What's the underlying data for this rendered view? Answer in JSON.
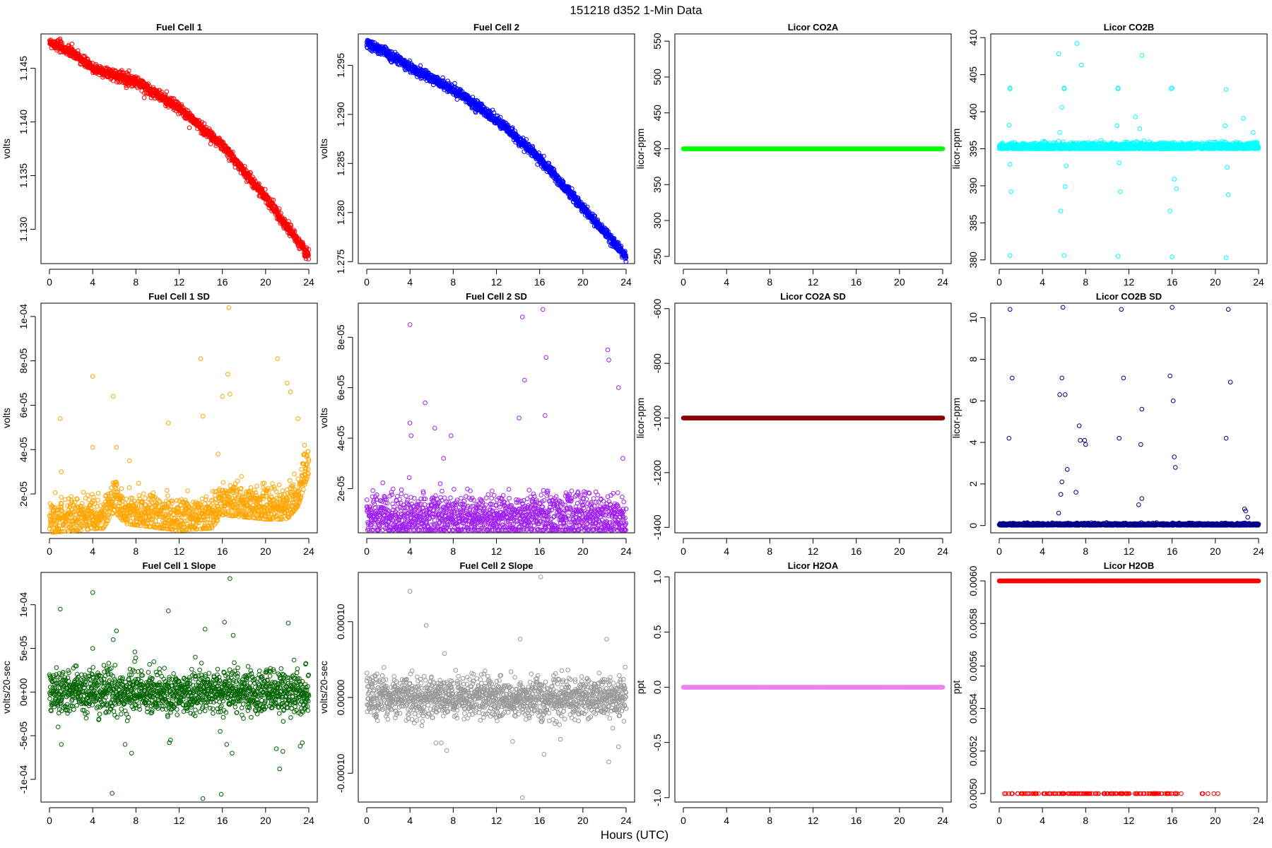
{
  "figure": {
    "title": "151218   d352   1-Min Data",
    "xlabel": "Hours (UTC)"
  },
  "chart_data": [
    {
      "type": "scatter",
      "title": "Fuel Cell 1",
      "ylabel": "volts",
      "color": "#ff0000",
      "xlim": [
        0,
        24
      ],
      "ylim": [
        1.1268,
        1.1482
      ],
      "xticks": [
        "0",
        "4",
        "8",
        "12",
        "16",
        "20",
        "24"
      ],
      "yticks": [
        {
          "v": 1.13,
          "label": "1.130"
        },
        {
          "v": 1.135,
          "label": "1.135"
        },
        {
          "v": 1.14,
          "label": "1.140"
        },
        {
          "v": 1.145,
          "label": "1.145"
        }
      ],
      "series_kind": "curve",
      "curve": [
        [
          0,
          1.1475
        ],
        [
          2,
          1.1465
        ],
        [
          4,
          1.145
        ],
        [
          8,
          1.1438
        ],
        [
          12,
          1.1413
        ],
        [
          16,
          1.1378
        ],
        [
          20,
          1.133
        ],
        [
          24,
          1.1275
        ]
      ],
      "noise": 0.0005,
      "outliers": []
    },
    {
      "type": "scatter",
      "title": "Fuel Cell 2",
      "ylabel": "volts",
      "color": "#0000ff",
      "xlim": [
        0,
        24
      ],
      "ylim": [
        1.2748,
        1.2982
      ],
      "xticks": [
        "0",
        "4",
        "8",
        "12",
        "16",
        "20",
        "24"
      ],
      "yticks": [
        {
          "v": 1.275,
          "label": "1.275"
        },
        {
          "v": 1.28,
          "label": "1.280"
        },
        {
          "v": 1.285,
          "label": "1.285"
        },
        {
          "v": 1.29,
          "label": "1.290"
        },
        {
          "v": 1.295,
          "label": "1.295"
        }
      ],
      "series_kind": "curve",
      "curve": [
        [
          0,
          1.2972
        ],
        [
          2,
          1.2962
        ],
        [
          4,
          1.2948
        ],
        [
          8,
          1.2925
        ],
        [
          12,
          1.2895
        ],
        [
          16,
          1.2855
        ],
        [
          20,
          1.2805
        ],
        [
          24,
          1.2755
        ]
      ],
      "noise": 0.0005,
      "outliers": []
    },
    {
      "type": "scatter",
      "title": "Licor CO2A",
      "ylabel": "licor-ppm",
      "color": "#00ff00",
      "xlim": [
        0,
        24
      ],
      "ylim": [
        240,
        560
      ],
      "xticks": [
        "0",
        "4",
        "8",
        "12",
        "16",
        "20",
        "24"
      ],
      "yticks": [
        {
          "v": 250,
          "label": "250"
        },
        {
          "v": 300,
          "label": "300"
        },
        {
          "v": 350,
          "label": "350"
        },
        {
          "v": 400,
          "label": "400"
        },
        {
          "v": 450,
          "label": "450"
        },
        {
          "v": 500,
          "label": "500"
        },
        {
          "v": 550,
          "label": "550"
        }
      ],
      "series_kind": "constant",
      "constant": 400,
      "noise": 0,
      "outliers": []
    },
    {
      "type": "scatter",
      "title": "Licor CO2B",
      "ylabel": "licor-ppm",
      "color": "#00ffff",
      "xlim": [
        0,
        24
      ],
      "ylim": [
        379.5,
        410.5
      ],
      "xticks": [
        "0",
        "4",
        "8",
        "12",
        "16",
        "20",
        "24"
      ],
      "yticks": [
        {
          "v": 380,
          "label": "380"
        },
        {
          "v": 385,
          "label": "385"
        },
        {
          "v": 390,
          "label": "390"
        },
        {
          "v": 395,
          "label": "395"
        },
        {
          "v": 400,
          "label": "400"
        },
        {
          "v": 405,
          "label": "405"
        },
        {
          "v": 410,
          "label": "410"
        }
      ],
      "series_kind": "noise",
      "base": 395.3,
      "noise": 0.25,
      "outliers": [
        [
          1,
          403.2
        ],
        [
          1,
          403.1
        ],
        [
          1,
          380.6
        ],
        [
          0.9,
          398.2
        ],
        [
          1.1,
          389.2
        ],
        [
          1.0,
          392.9
        ],
        [
          5.5,
          407.8
        ],
        [
          6,
          403.2
        ],
        [
          6,
          403.1
        ],
        [
          5.8,
          400.6
        ],
        [
          5.6,
          397.2
        ],
        [
          5.7,
          386.6
        ],
        [
          6.1,
          389.9
        ],
        [
          6.0,
          380.6
        ],
        [
          6.2,
          392.7
        ],
        [
          7.2,
          409.2
        ],
        [
          7.6,
          406.3
        ],
        [
          8.0,
          395.7
        ],
        [
          11,
          403.1
        ],
        [
          11,
          403.2
        ],
        [
          11,
          380.5
        ],
        [
          10.9,
          398.1
        ],
        [
          11.1,
          393.1
        ],
        [
          11.2,
          389.2
        ],
        [
          12.6,
          399.3
        ],
        [
          13,
          397.7
        ],
        [
          13.2,
          407.6
        ],
        [
          13.4,
          396.1
        ],
        [
          15.9,
          403.1
        ],
        [
          16,
          403.2
        ],
        [
          16,
          380.4
        ],
        [
          15.8,
          386.6
        ],
        [
          16.2,
          390.9
        ],
        [
          16.4,
          389.6
        ],
        [
          21,
          403.0
        ],
        [
          21,
          380.3
        ],
        [
          20.9,
          398.1
        ],
        [
          21.1,
          392.5
        ],
        [
          21.2,
          388.8
        ],
        [
          22.6,
          399.1
        ],
        [
          23.5,
          397.2
        ]
      ]
    },
    {
      "type": "scatter",
      "title": "Fuel Cell 1 SD",
      "ylabel": "volts",
      "color": "#ffa500",
      "xlim": [
        0,
        24
      ],
      "ylim": [
        2.5e-06,
        0.000106
      ],
      "xticks": [
        "0",
        "4",
        "8",
        "12",
        "16",
        "20",
        "24"
      ],
      "yticks": [
        {
          "v": 2e-05,
          "label": "2e-05"
        },
        {
          "v": 4e-05,
          "label": "4e-05"
        },
        {
          "v": 6e-05,
          "label": "6e-05"
        },
        {
          "v": 8e-05,
          "label": "8e-05"
        },
        {
          "v": 0.0001,
          "label": "1e-04"
        }
      ],
      "series_kind": "noise",
      "curve": [
        [
          0,
          8e-06
        ],
        [
          5,
          1e-05
        ],
        [
          6,
          1.8e-05
        ],
        [
          7,
          1.2e-05
        ],
        [
          12,
          9e-06
        ],
        [
          15,
          1e-05
        ],
        [
          16,
          1.6e-05
        ],
        [
          20,
          1.4e-05
        ],
        [
          22,
          1.4e-05
        ],
        [
          23,
          2e-05
        ],
        [
          24,
          3.5e-05
        ]
      ],
      "noise": 4.5e-06,
      "outliers": [
        [
          1,
          5.4e-05
        ],
        [
          1.1,
          3e-05
        ],
        [
          4,
          7.3e-05
        ],
        [
          4,
          4.1e-05
        ],
        [
          5.9,
          6.4e-05
        ],
        [
          6.2,
          4.1e-05
        ],
        [
          7.4,
          3.5e-05
        ],
        [
          11,
          5.2e-05
        ],
        [
          14,
          8.1e-05
        ],
        [
          14.2,
          5.5e-05
        ],
        [
          15.6,
          3.8e-05
        ],
        [
          16,
          6.4e-05
        ],
        [
          16.5,
          7.4e-05
        ],
        [
          16.7,
          6.5e-05
        ],
        [
          16.6,
          0.000104
        ],
        [
          21.1,
          8.1e-05
        ],
        [
          22.0,
          7e-05
        ],
        [
          22.3,
          6.6e-05
        ],
        [
          23.0,
          5.4e-05
        ],
        [
          23.6,
          4.2e-05
        ]
      ]
    },
    {
      "type": "scatter",
      "title": "Fuel Cell 2 SD",
      "ylabel": "volts",
      "color": "#a020f0",
      "xlim": [
        0,
        24
      ],
      "ylim": [
        2.5e-06,
        9.35e-05
      ],
      "xticks": [
        "0",
        "4",
        "8",
        "12",
        "16",
        "20",
        "24"
      ],
      "yticks": [
        {
          "v": 2e-05,
          "label": "2e-05"
        },
        {
          "v": 4e-05,
          "label": "4e-05"
        },
        {
          "v": 6e-05,
          "label": "6e-05"
        },
        {
          "v": 8e-05,
          "label": "8e-05"
        }
      ],
      "series_kind": "noise",
      "base": 9e-06,
      "noise": 4.5e-06,
      "outliers": [
        [
          4,
          8.5e-05
        ],
        [
          4,
          4.6e-05
        ],
        [
          4.1,
          4.1e-05
        ],
        [
          5.4,
          5.4e-05
        ],
        [
          6.3,
          4.4e-05
        ],
        [
          7.1,
          3.2e-05
        ],
        [
          7.8,
          4.1e-05
        ],
        [
          14.1,
          4.8e-05
        ],
        [
          14.4,
          8.8e-05
        ],
        [
          14.6,
          6.3e-05
        ],
        [
          16.3,
          9.1e-05
        ],
        [
          16.6,
          7.2e-05
        ],
        [
          16.5,
          4.9e-05
        ],
        [
          22.3,
          7.5e-05
        ],
        [
          22.4,
          7.1e-05
        ],
        [
          23.3,
          6e-05
        ],
        [
          23.7,
          3.2e-05
        ]
      ]
    },
    {
      "type": "scatter",
      "title": "Licor CO2A SD",
      "ylabel": "licor-ppm",
      "color": "#8b0000",
      "xlim": [
        0,
        24
      ],
      "ylim": [
        -1420,
        -580
      ],
      "xticks": [
        "0",
        "4",
        "8",
        "12",
        "16",
        "20",
        "24"
      ],
      "yticks": [
        {
          "v": -1400,
          "label": "-1400"
        },
        {
          "v": -1200,
          "label": "-1200"
        },
        {
          "v": -1000,
          "label": "-1000"
        },
        {
          "v": -800,
          "label": "-800"
        },
        {
          "v": -600,
          "label": "-600"
        }
      ],
      "series_kind": "constant",
      "constant": -1000,
      "noise": 0,
      "outliers": []
    },
    {
      "type": "scatter",
      "title": "Licor CO2B SD",
      "ylabel": "licor-ppm",
      "color": "#00008b",
      "xlim": [
        0,
        24
      ],
      "ylim": [
        -0.35,
        10.7
      ],
      "xticks": [
        "0",
        "4",
        "8",
        "12",
        "16",
        "20",
        "24"
      ],
      "yticks": [
        {
          "v": 0,
          "label": "0"
        },
        {
          "v": 2,
          "label": "2"
        },
        {
          "v": 4,
          "label": "4"
        },
        {
          "v": 6,
          "label": "6"
        },
        {
          "v": 8,
          "label": "8"
        },
        {
          "v": 10,
          "label": "10"
        }
      ],
      "series_kind": "noise",
      "base": 0.05,
      "noise": 0.03,
      "outliers": [
        [
          0.9,
          4.2
        ],
        [
          1,
          10.4
        ],
        [
          1.2,
          7.1
        ],
        [
          5.5,
          0.6
        ],
        [
          5.6,
          6.3
        ],
        [
          5.9,
          10.5
        ],
        [
          5.8,
          7.1
        ],
        [
          6.1,
          6.3
        ],
        [
          5.8,
          2.1
        ],
        [
          5.7,
          1.5
        ],
        [
          6.3,
          2.7
        ],
        [
          7.1,
          1.6
        ],
        [
          7.4,
          4.8
        ],
        [
          7.5,
          4.1
        ],
        [
          7.9,
          4.1
        ],
        [
          8,
          3.9
        ],
        [
          11.1,
          4.2
        ],
        [
          11.3,
          10.4
        ],
        [
          11.5,
          7.1
        ],
        [
          13.2,
          5.6
        ],
        [
          13.1,
          3.9
        ],
        [
          13.2,
          1.3
        ],
        [
          12.9,
          1.0
        ],
        [
          15.8,
          7.2
        ],
        [
          16,
          10.5
        ],
        [
          16.1,
          6.0
        ],
        [
          16.2,
          3.3
        ],
        [
          16.3,
          2.8
        ],
        [
          21.0,
          4.2
        ],
        [
          21.2,
          10.4
        ],
        [
          21.4,
          6.9
        ],
        [
          22.7,
          0.8
        ],
        [
          22.8,
          0.7
        ],
        [
          23.0,
          0.4
        ]
      ]
    },
    {
      "type": "scatter",
      "title": "Fuel Cell 1 Slope",
      "ylabel": "volts/20-sec",
      "color": "#006400",
      "xlim": [
        0,
        24
      ],
      "ylim": [
        -0.000126,
        0.000137
      ],
      "xticks": [
        "0",
        "4",
        "8",
        "12",
        "16",
        "20",
        "24"
      ],
      "yticks": [
        {
          "v": -0.0001,
          "label": "-1e-04"
        },
        {
          "v": -5e-05,
          "label": "-5e-05"
        },
        {
          "v": 0,
          "label": "0e+00"
        },
        {
          "v": 5e-05,
          "label": "5e-05"
        },
        {
          "v": 0.0001,
          "label": "1e-04"
        }
      ],
      "series_kind": "noise",
      "base": 0.0,
      "noise": 1.2e-05,
      "outliers": [
        [
          1,
          9.5e-05
        ],
        [
          1.1,
          -6e-05
        ],
        [
          0.8,
          -4e-05
        ],
        [
          4,
          0.000114
        ],
        [
          4,
          5e-05
        ],
        [
          5.8,
          -0.000116
        ],
        [
          5.9,
          6e-05
        ],
        [
          6.2,
          7e-05
        ],
        [
          7,
          -6e-05
        ],
        [
          7.6,
          -7e-05
        ],
        [
          7.9,
          4.6e-05
        ],
        [
          11,
          9.3e-05
        ],
        [
          11.1,
          -5.8e-05
        ],
        [
          11.2,
          -5.5e-05
        ],
        [
          13.5,
          4e-05
        ],
        [
          14.2,
          -0.000122
        ],
        [
          14.4,
          7.2e-05
        ],
        [
          15.8,
          -4.5e-05
        ],
        [
          15.9,
          -0.000117
        ],
        [
          16.2,
          8e-05
        ],
        [
          16.4,
          -6e-05
        ],
        [
          16.7,
          0.00013
        ],
        [
          16.9,
          -7e-05
        ],
        [
          17.0,
          6.5e-05
        ],
        [
          21.0,
          -6.5e-05
        ],
        [
          21.3,
          -8.8e-05
        ],
        [
          21.6,
          -6.8e-05
        ],
        [
          22.1,
          7.9e-05
        ],
        [
          23.2,
          -6.2e-05
        ],
        [
          23.4,
          -5.8e-05
        ],
        [
          23.7,
          3.2e-05
        ]
      ]
    },
    {
      "type": "scatter",
      "title": "Fuel Cell 2 Slope",
      "ylabel": "volts/20-sec",
      "color": "#999999",
      "xlim": [
        0,
        24
      ],
      "ylim": [
        -0.000138,
        0.000165
      ],
      "xticks": [
        "0",
        "4",
        "8",
        "12",
        "16",
        "20",
        "24"
      ],
      "yticks": [
        {
          "v": -0.0001,
          "label": "-0.00010"
        },
        {
          "v": 0,
          "label": "0.00000"
        },
        {
          "v": 0.0001,
          "label": "0.00010"
        }
      ],
      "series_kind": "noise",
      "base": 0.0,
      "noise": 1.3e-05,
      "outliers": [
        [
          4,
          0.00014
        ],
        [
          4.2,
          3.5e-05
        ],
        [
          5.5,
          9.5e-05
        ],
        [
          6.4,
          -6e-05
        ],
        [
          6.9,
          -6e-05
        ],
        [
          7.2,
          5.8e-05
        ],
        [
          7.4,
          -7e-05
        ],
        [
          13.5,
          -5.8e-05
        ],
        [
          14.2,
          7.7e-05
        ],
        [
          14.4,
          -0.000132
        ],
        [
          16.1,
          0.000159
        ],
        [
          16.4,
          -7.5e-05
        ],
        [
          22.2,
          7.7e-05
        ],
        [
          22.4,
          -8.5e-05
        ],
        [
          23.3,
          -6.5e-05
        ]
      ]
    },
    {
      "type": "scatter",
      "title": "Licor H2OA",
      "ylabel": "ppt",
      "color": "#ee82ee",
      "xlim": [
        0,
        24
      ],
      "ylim": [
        -1.04,
        1.04
      ],
      "xticks": [
        "0",
        "4",
        "8",
        "12",
        "16",
        "20",
        "24"
      ],
      "yticks": [
        {
          "v": -1,
          "label": "-1.0"
        },
        {
          "v": -0.5,
          "label": "-0.5"
        },
        {
          "v": 0,
          "label": "0.0"
        },
        {
          "v": 0.5,
          "label": "0.5"
        },
        {
          "v": 1,
          "label": "1.0"
        }
      ],
      "series_kind": "constant",
      "constant": 0,
      "noise": 0,
      "outliers": []
    },
    {
      "type": "scatter",
      "title": "Licor H2OB",
      "ylabel": "ppt",
      "color": "#ff0000",
      "xlim": [
        0,
        24
      ],
      "ylim": [
        0.00496,
        0.00604
      ],
      "xticks": [
        "0",
        "4",
        "8",
        "12",
        "16",
        "20",
        "24"
      ],
      "yticks": [
        {
          "v": 0.005,
          "label": "0.0050"
        },
        {
          "v": 0.0052,
          "label": "0.0052"
        },
        {
          "v": 0.0054,
          "label": "0.0054"
        },
        {
          "v": 0.0056,
          "label": "0.0056"
        },
        {
          "v": 0.0058,
          "label": "0.0058"
        },
        {
          "v": 0.006,
          "label": "0.0060"
        }
      ],
      "series_kind": "twolevel",
      "constant": 0.006,
      "low": 0.005,
      "low_range": [
        0,
        20.5
      ],
      "noise": 0,
      "outliers": []
    }
  ]
}
